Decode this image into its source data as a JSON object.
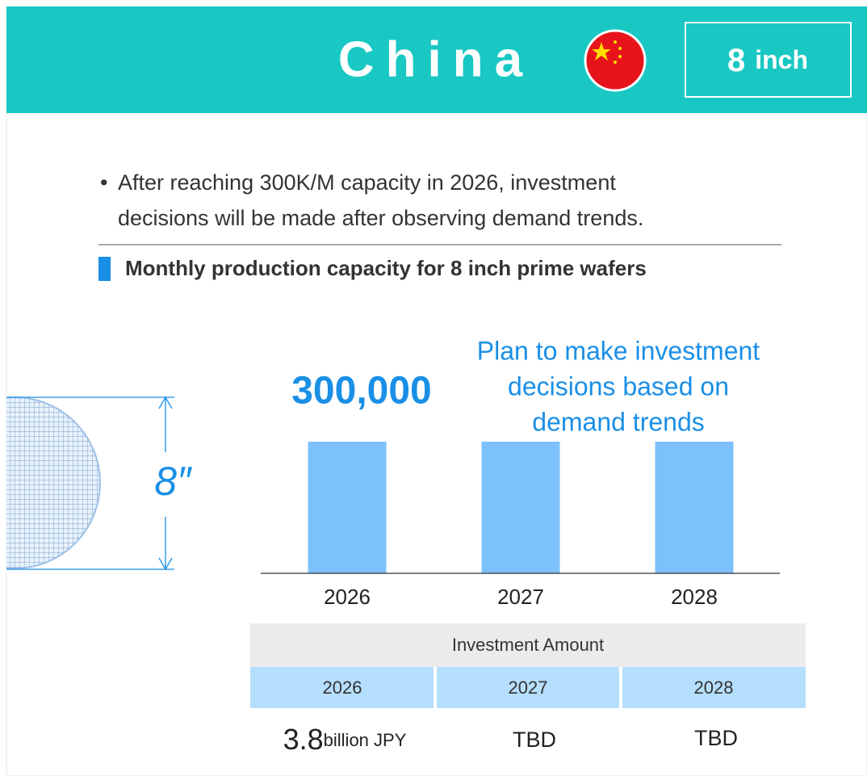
{
  "header": {
    "title": "China",
    "size": "8",
    "size_unit": "inch"
  },
  "bullet": {
    "lines": [
      "After reaching 300K/M capacity in 2026, investment",
      "decisions will be made after observing demand trends."
    ]
  },
  "section_title": "Monthly production capacity for 8 inch prime wafers",
  "wafer_label": "8″",
  "chart_data": {
    "type": "bar",
    "categories": [
      "2026",
      "2027",
      "2028"
    ],
    "values": [
      300000,
      300000,
      300000
    ],
    "value_labels": [
      "300,000",
      null,
      null
    ],
    "color": "#7cc1fb",
    "annotation": [
      "Plan to make investment",
      "decisions based on",
      "demand trends"
    ]
  },
  "table": {
    "title": "Investment Amount",
    "header": [
      "2026",
      "2027",
      "2028"
    ],
    "row": [
      {
        "value": "3.8",
        "unit": "billion JPY"
      },
      {
        "value": "TBD"
      },
      {
        "value": "TBD"
      }
    ]
  }
}
